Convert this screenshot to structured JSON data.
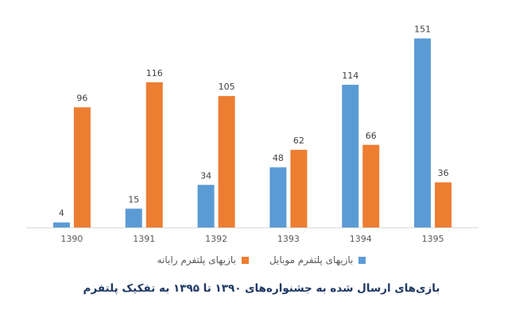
{
  "chart_data": {
    "type": "bar",
    "title": "بازی‌های ارسال شده به جشنواره‌های ۱۳۹۰ تا ۱۳۹۵ به تفکیک پلتفرم",
    "categories": [
      "1390",
      "1391",
      "1392",
      "1393",
      "1394",
      "1395"
    ],
    "series": [
      {
        "name": "بازیهای پلتفرم موبایل",
        "color": "#5b9bd5",
        "values": [
          4,
          15,
          34,
          48,
          114,
          151
        ]
      },
      {
        "name": "بازیهای پلتفرم رایانه",
        "color": "#ed7d31",
        "values": [
          96,
          116,
          105,
          62,
          66,
          36
        ]
      }
    ],
    "ylim": [
      0,
      160
    ],
    "grid": false,
    "legend": "bottom"
  }
}
